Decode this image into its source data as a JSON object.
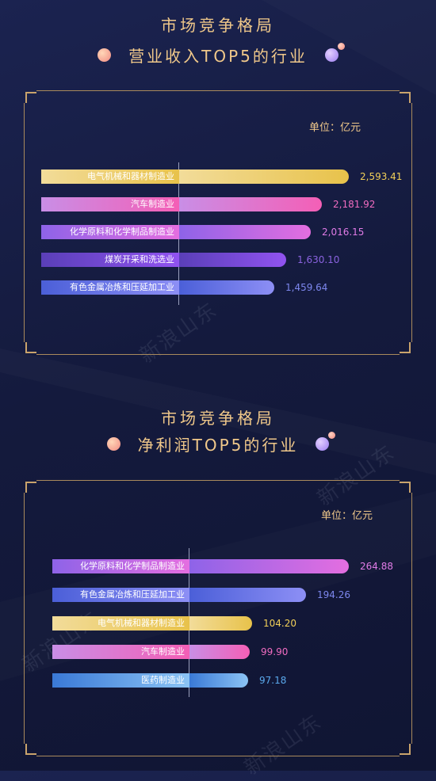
{
  "watermark": "新浪山东",
  "colors": {
    "gold": "#e8c24a",
    "pink": "#f45fb6",
    "magenta": "#c953e8",
    "violet": "#7a4fd8",
    "periwinkle": "#6f79ee",
    "blue": "#4fa1e6"
  },
  "chart_data": [
    {
      "type": "bar",
      "orientation": "horizontal",
      "title": "市场竞争格局",
      "subtitle": "营业收入TOP5的行业",
      "unit": "单位：亿元",
      "categories": [
        "电气机械和器材制造业",
        "汽车制造业",
        "化学原料和化学制品制造业",
        "煤炭开采和洗选业",
        "有色金属冶炼和压延加工业"
      ],
      "values": [
        2593.41,
        2181.92,
        2016.15,
        1630.1,
        1459.64
      ],
      "value_labels": [
        "2,593.41",
        "2,181.92",
        "2,016.15",
        "1,630.10",
        "1,459.64"
      ],
      "colors": [
        "gold",
        "pink",
        "magenta",
        "violet",
        "periwinkle"
      ]
    },
    {
      "type": "bar",
      "orientation": "horizontal",
      "title": "市场竞争格局",
      "subtitle": "净利润TOP5的行业",
      "unit": "单位：亿元",
      "categories": [
        "化学原料和化学制品制造业",
        "有色金属冶炼和压延加工业",
        "电气机械和器材制造业",
        "汽车制造业",
        "医药制造业"
      ],
      "values": [
        264.88,
        194.26,
        104.2,
        99.9,
        97.18
      ],
      "value_labels": [
        "264.88",
        "194.26",
        "104.20",
        "99.90",
        "97.18"
      ],
      "colors": [
        "magenta",
        "periwinkle",
        "gold",
        "pink",
        "blue"
      ]
    }
  ]
}
